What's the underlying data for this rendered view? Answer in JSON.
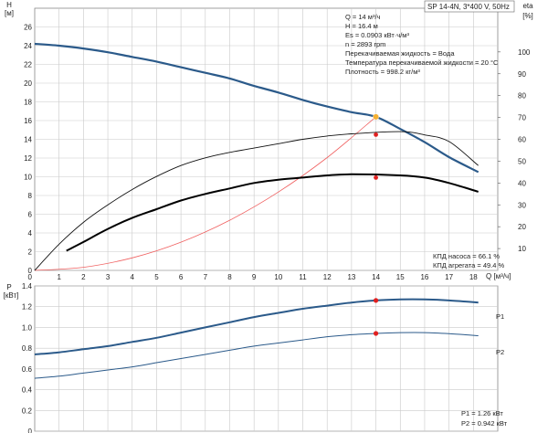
{
  "model_label": "SP 14-4N, 3*400 V, 50Hz",
  "info_lines": [
    "Q = 14 м³/ч",
    "H = 16.4 м",
    "Es = 0.0903 кВт·ч/м³",
    "n = 2893 rpm",
    "Перекачиваемая жидкость = Вода",
    "Температура перекачиваемой жидкости = 20 °C",
    "Плотность = 998.2 кг/м³"
  ],
  "efficiency_notes": [
    "КПД насоса = 66.1 %",
    "КПД агрегата = 49.4 %"
  ],
  "power_notes": [
    "P1 = 1.26 кВт",
    "P2 = 0.942 кВт"
  ],
  "colors": {
    "head": "#2b5a8a",
    "eff": "#000000",
    "system": "#f06060",
    "duty_point": "#e02020",
    "duty_head": "#f5b031",
    "p_curve": "#2b5a8a",
    "grid": "#c9c9c9"
  },
  "chart_data": [
    {
      "type": "line",
      "xlabel": "Q [м³/ч]",
      "ylabel_unit": "H [м]",
      "y2label_unit": "eta [%]",
      "xlim": [
        0,
        19
      ],
      "ylim": [
        0,
        28
      ],
      "y2lim": [
        0,
        120
      ],
      "x_ticks": [
        1,
        2,
        3,
        4,
        5,
        6,
        7,
        8,
        9,
        10,
        11,
        12,
        13,
        14,
        15,
        16,
        17,
        18
      ],
      "y_ticks": [
        0,
        2,
        4,
        6,
        8,
        10,
        12,
        14,
        16,
        18,
        20,
        22,
        24,
        26
      ],
      "y2_ticks": [
        0,
        10,
        20,
        30,
        40,
        50,
        60,
        70,
        80,
        90,
        100
      ],
      "series": [
        {
          "id": "head",
          "axis": "y",
          "x": [
            0,
            1,
            2,
            3,
            4,
            5,
            6,
            7,
            8,
            9,
            10,
            11,
            12,
            13,
            14,
            15,
            16,
            17,
            18.2
          ],
          "y": [
            24.2,
            24.0,
            23.7,
            23.3,
            22.8,
            22.3,
            21.7,
            21.1,
            20.5,
            19.7,
            19.0,
            18.2,
            17.5,
            16.9,
            16.4,
            15.1,
            13.7,
            12.1,
            10.5
          ]
        },
        {
          "id": "system",
          "axis": "y",
          "x": [
            0,
            2,
            4,
            6,
            8,
            10,
            12,
            14
          ],
          "y": [
            0,
            0.33,
            1.34,
            3.01,
            5.36,
            8.37,
            12.05,
            16.4
          ]
        },
        {
          "id": "pump_eff",
          "axis": "y2",
          "x": [
            0,
            1,
            2,
            3,
            4,
            5,
            6,
            7,
            8,
            9,
            10,
            11,
            12,
            13,
            14,
            15,
            16,
            17,
            18.2
          ],
          "y": [
            0,
            12,
            22,
            30,
            37,
            43,
            48,
            51.5,
            54,
            56,
            58,
            60,
            61.5,
            62.5,
            66.1,
            63.5,
            62,
            59,
            48
          ]
        },
        {
          "id": "unit_eff",
          "axis": "y2",
          "x": [
            1.3,
            2,
            3,
            4,
            5,
            6,
            7,
            8,
            9,
            10,
            11,
            12,
            13,
            14,
            15,
            16,
            17,
            18.2
          ],
          "y": [
            9,
            13,
            19,
            24,
            28,
            32,
            35,
            37.5,
            40,
            41.5,
            42.5,
            43.5,
            44,
            49.4,
            43.5,
            42.5,
            40,
            36
          ]
        }
      ],
      "duty_point": {
        "x": 14,
        "head": 16.4,
        "pump_eff": 66.1,
        "unit_eff": 49.4
      }
    },
    {
      "type": "line",
      "ylabel_unit": "P [кВт]",
      "xlim": [
        0,
        19
      ],
      "ylim": [
        0,
        1.4
      ],
      "y_ticks": [
        0,
        0.2,
        0.4,
        0.6,
        0.8,
        1.0,
        1.2,
        1.4
      ],
      "y_tick_labels": [
        "0",
        "0.2",
        "0.4",
        "0.6",
        "0.8",
        "1.0",
        "1.2",
        "1.4"
      ],
      "series": [
        {
          "name": "P1",
          "x": [
            0,
            1,
            2,
            3,
            4,
            5,
            6,
            7,
            8,
            9,
            10,
            11,
            12,
            13,
            14,
            15,
            16,
            17,
            18.2
          ],
          "y": [
            0.74,
            0.76,
            0.79,
            0.82,
            0.86,
            0.9,
            0.95,
            1.0,
            1.05,
            1.1,
            1.14,
            1.18,
            1.21,
            1.24,
            1.26,
            1.27,
            1.27,
            1.26,
            1.24
          ]
        },
        {
          "name": "P2",
          "x": [
            0,
            1,
            2,
            3,
            4,
            5,
            6,
            7,
            8,
            9,
            10,
            11,
            12,
            13,
            14,
            15,
            16,
            17,
            18.2
          ],
          "y": [
            0.51,
            0.53,
            0.56,
            0.59,
            0.62,
            0.66,
            0.7,
            0.74,
            0.78,
            0.82,
            0.85,
            0.88,
            0.91,
            0.93,
            0.942,
            0.95,
            0.95,
            0.94,
            0.92
          ]
        }
      ],
      "duty_point": {
        "x": 14,
        "P1": 1.26,
        "P2": 0.942
      }
    }
  ]
}
